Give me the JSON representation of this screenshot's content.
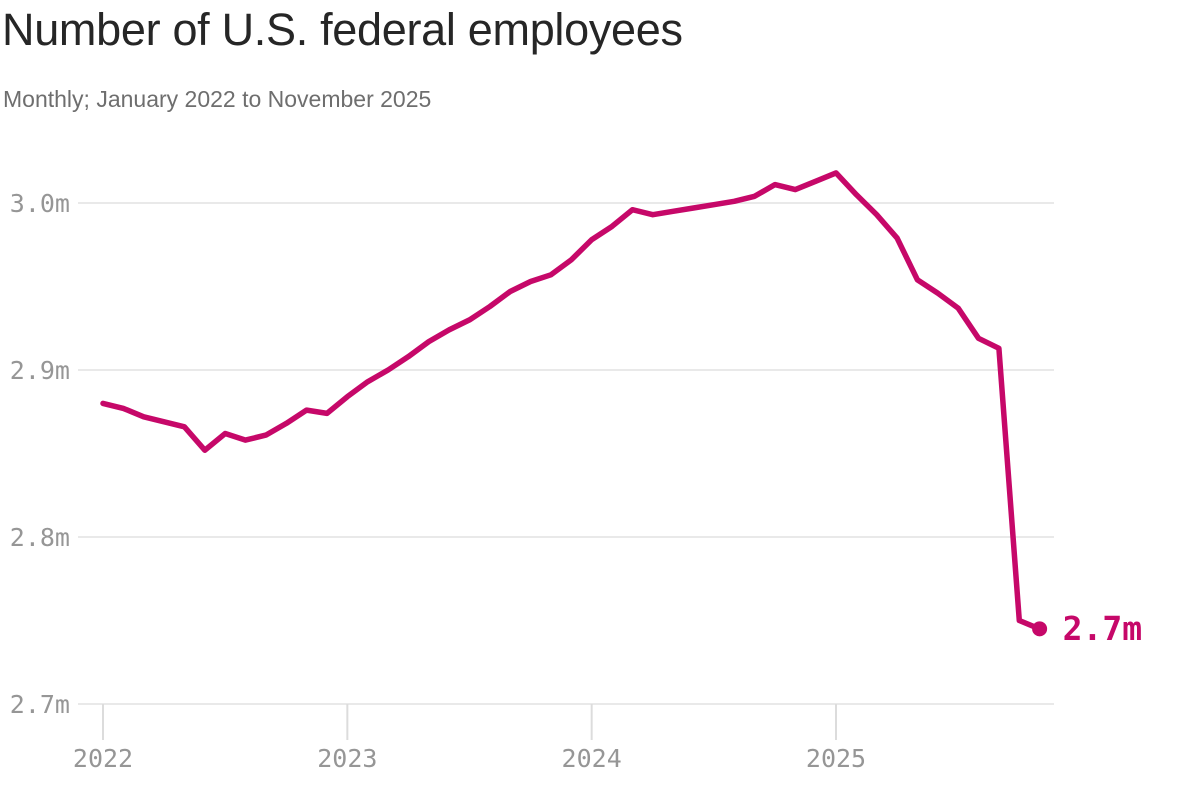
{
  "page": {
    "title": "Number of U.S. federal employees",
    "subtitle": "Monthly; January 2022 to November 2025"
  },
  "chart_data": {
    "type": "line",
    "title": "Number of U.S. federal employees",
    "subtitle": "Monthly; January 2022 to November 2025",
    "unit": "millions of employees",
    "frequency": "monthly",
    "x": [
      "2022-01",
      "2022-02",
      "2022-03",
      "2022-04",
      "2022-05",
      "2022-06",
      "2022-07",
      "2022-08",
      "2022-09",
      "2022-10",
      "2022-11",
      "2022-12",
      "2023-01",
      "2023-02",
      "2023-03",
      "2023-04",
      "2023-05",
      "2023-06",
      "2023-07",
      "2023-08",
      "2023-09",
      "2023-10",
      "2023-11",
      "2023-12",
      "2024-01",
      "2024-02",
      "2024-03",
      "2024-04",
      "2024-05",
      "2024-06",
      "2024-07",
      "2024-08",
      "2024-09",
      "2024-10",
      "2024-11",
      "2024-12",
      "2025-01",
      "2025-02",
      "2025-03",
      "2025-04",
      "2025-05",
      "2025-06",
      "2025-07",
      "2025-08",
      "2025-09",
      "2025-10",
      "2025-11"
    ],
    "values": [
      2.88,
      2.877,
      2.872,
      2.869,
      2.866,
      2.852,
      2.862,
      2.858,
      2.861,
      2.868,
      2.876,
      2.874,
      2.884,
      2.893,
      2.9,
      2.908,
      2.917,
      2.924,
      2.93,
      2.938,
      2.947,
      2.953,
      2.957,
      2.966,
      2.978,
      2.986,
      2.996,
      2.993,
      2.995,
      2.997,
      2.999,
      3.001,
      3.004,
      3.011,
      3.008,
      3.013,
      3.018,
      3.005,
      2.993,
      2.979,
      2.954,
      2.946,
      2.937,
      2.919,
      2.913,
      2.75,
      2.745
    ],
    "ylim": [
      2.7,
      3.0
    ],
    "yticks": [
      {
        "value": 3.0,
        "label": "3.0m"
      },
      {
        "value": 2.9,
        "label": "2.9m"
      },
      {
        "value": 2.8,
        "label": "2.8m"
      },
      {
        "value": 2.7,
        "label": "2.7m"
      }
    ],
    "xticks": [
      {
        "month_index": 0,
        "label": "2022"
      },
      {
        "month_index": 12,
        "label": "2023"
      },
      {
        "month_index": 24,
        "label": "2024"
      },
      {
        "month_index": 36,
        "label": "2025"
      }
    ],
    "end_label": "2.7m",
    "line_color": "#c60869",
    "grid": true,
    "legend": "none"
  }
}
